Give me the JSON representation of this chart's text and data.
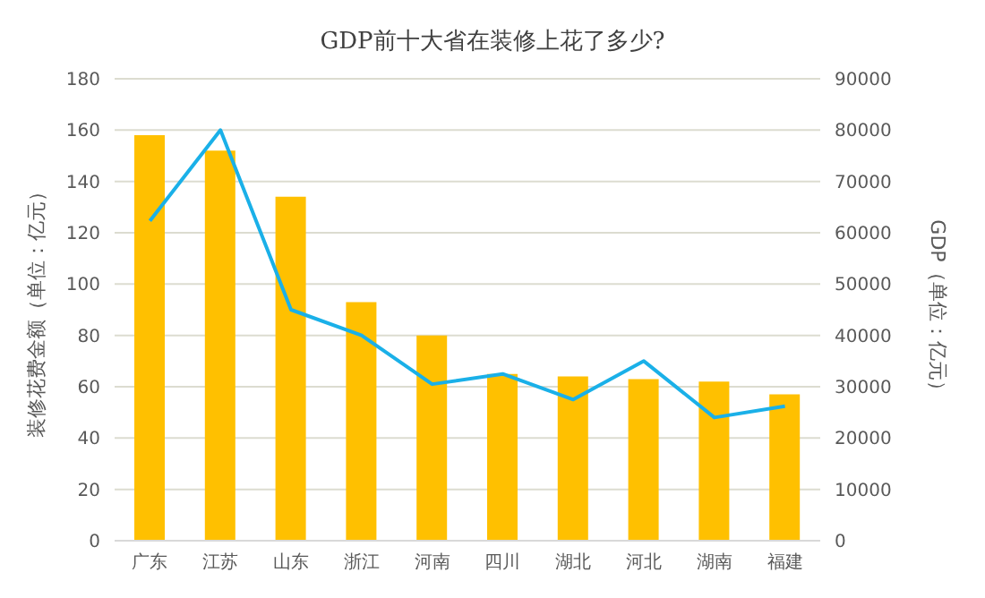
{
  "chart_data": {
    "type": "bar",
    "title": "GDP前十大省在装修上花了多少?",
    "ylabel": "装修花费金额（单位：亿元）",
    "y2label": "GDP（单位：亿元）",
    "categories": [
      "广东",
      "江苏",
      "山东",
      "浙江",
      "河南",
      "四川",
      "湖北",
      "河北",
      "湖南",
      "福建"
    ],
    "series": [
      {
        "color": "#ffc000",
        "values": [
          158,
          152,
          134,
          93,
          80,
          65,
          64,
          63,
          62,
          57
        ]
      },
      {
        "type": "line",
        "axis": "y2",
        "color": "#1ab0e8",
        "values": [
          62300,
          80000,
          45000,
          40000,
          30500,
          32500,
          27500,
          35000,
          24000,
          26200
        ]
      }
    ],
    "ylim": [
      0,
      180
    ],
    "yticks": [
      0,
      20,
      40,
      60,
      80,
      100,
      120,
      140,
      160,
      180
    ],
    "y2lim": [
      0,
      90000
    ],
    "y2ticks": [
      0,
      10000,
      20000,
      30000,
      40000,
      50000,
      60000,
      70000,
      80000,
      90000
    ],
    "grid": "y",
    "legend": false,
    "marker": "none"
  }
}
